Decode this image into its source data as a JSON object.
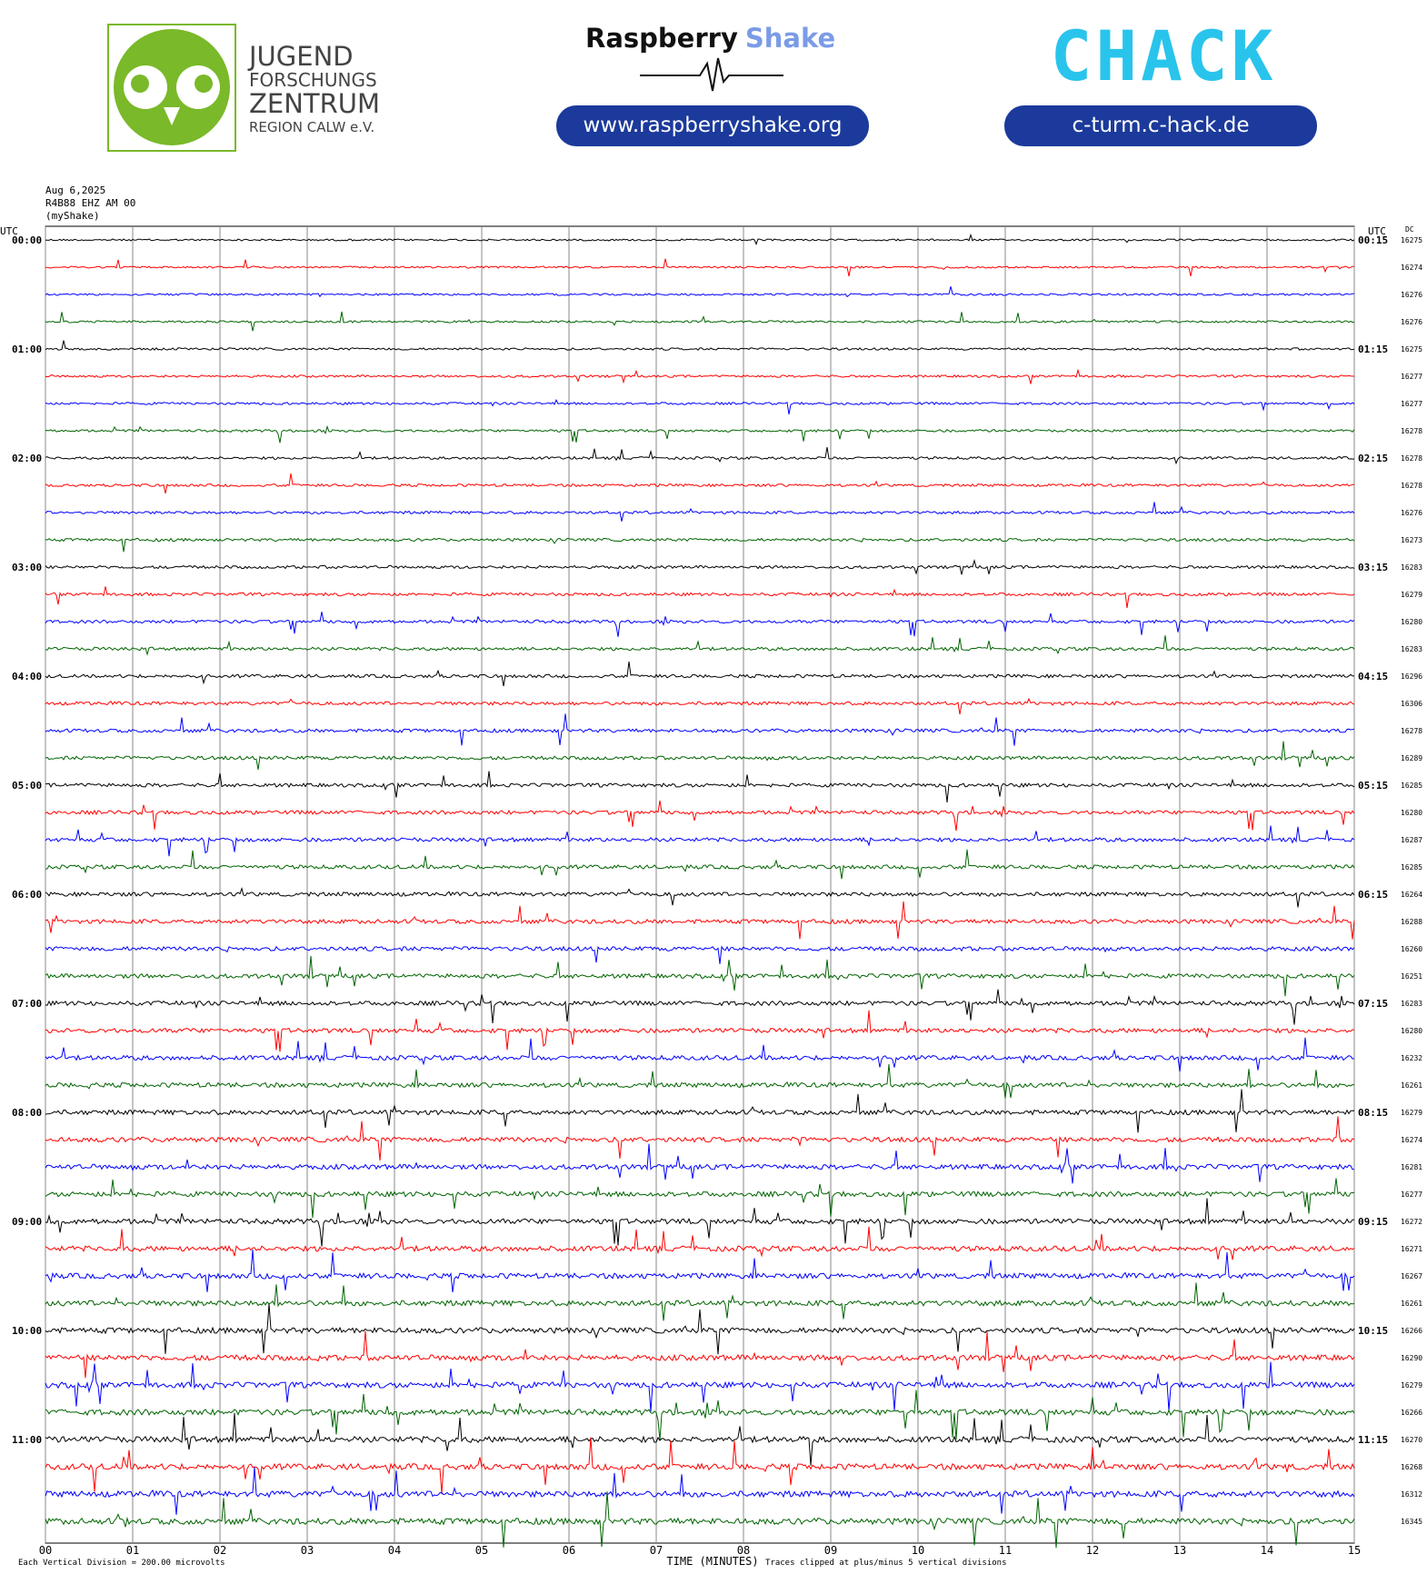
{
  "header": {
    "jfz": [
      "JUGEND",
      "FORSCHUNGS",
      "ZENTRUM",
      "REGION CALW e.V."
    ],
    "rs_name": [
      "Raspberry",
      "Shake"
    ],
    "rs_url": "www.raspberryshake.org",
    "chack": "CHACK",
    "chack_url": "c-turm.c-hack.de"
  },
  "chart_data": {
    "type": "helicorder",
    "info": [
      "Aug 6,2025",
      "R4B88 EHZ AM 00",
      "(myShake)"
    ],
    "left_axis_title": "UTC",
    "right_axis_title": "UTC",
    "dc_title": "DC",
    "left_labels": [
      "00:00",
      "01:00",
      "02:00",
      "03:00",
      "04:00",
      "05:00",
      "06:00",
      "07:00",
      "08:00",
      "09:00",
      "10:00",
      "11:00"
    ],
    "right_labels": [
      "00:15",
      "01:15",
      "02:15",
      "03:15",
      "04:15",
      "05:15",
      "06:15",
      "07:15",
      "08:15",
      "09:15",
      "10:15",
      "11:15"
    ],
    "colors": [
      "#000000",
      "#ff0000",
      "#0000ff",
      "#006400"
    ],
    "dc": [
      16275,
      16274,
      16276,
      16276,
      16275,
      16277,
      16277,
      16278,
      16278,
      16278,
      16276,
      16273,
      16283,
      16279,
      16280,
      16283,
      16296,
      16306,
      16278,
      16289,
      16285,
      16280,
      16287,
      16285,
      16264,
      16288,
      16260,
      16251,
      16283,
      16280,
      16232,
      16261,
      16279,
      16274,
      16281,
      16277,
      16272,
      16271,
      16267,
      16261,
      16266,
      16290,
      16279,
      16266,
      16270,
      16268,
      16312,
      16345
    ],
    "xlim": [
      0,
      15
    ],
    "xticks": [
      {
        "value": 0,
        "label": "00"
      },
      {
        "value": 1,
        "label": "01"
      },
      {
        "value": 2,
        "label": "02"
      },
      {
        "value": 3,
        "label": "03"
      },
      {
        "value": 4,
        "label": "04"
      },
      {
        "value": 5,
        "label": "05"
      },
      {
        "value": 6,
        "label": "06"
      },
      {
        "value": 7,
        "label": "07"
      },
      {
        "value": 8,
        "label": "08"
      },
      {
        "value": 9,
        "label": "09"
      },
      10,
      11,
      12,
      13,
      14,
      15
    ],
    "x_label": "TIME (MINUTES)",
    "footer_left": "Each Vertical Division = 200.00 microvolts",
    "footer_right": "Traces clipped at plus/minus 5 vertical divisions"
  }
}
